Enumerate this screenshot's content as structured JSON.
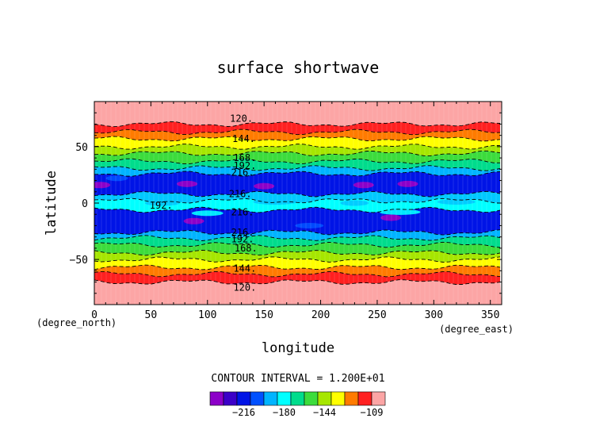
{
  "chart_data": {
    "type": "heatmap",
    "title": "surface shortwave",
    "xlabel": "longitude",
    "ylabel": "latitude",
    "x_unit_label": "(degree_east)",
    "y_unit_label": "(degree_north)",
    "xlim": [
      0,
      360
    ],
    "ylim": [
      -90,
      90
    ],
    "x_ticks": [
      0,
      50,
      100,
      150,
      200,
      250,
      300,
      350
    ],
    "y_ticks": [
      -50,
      0,
      50
    ],
    "x_tick_labels": [
      "0",
      "50",
      "100",
      "150",
      "200",
      "250",
      "300",
      "350"
    ],
    "y_tick_labels": [
      "−50",
      "0",
      "50"
    ],
    "grid": false,
    "contour_interval_text": "CONTOUR INTERVAL = 1.200E+01",
    "contour_labels": [
      {
        "text": "120.",
        "lon": 130,
        "lat": 75
      },
      {
        "text": "144.",
        "lon": 132,
        "lat": 57
      },
      {
        "text": "168.",
        "lon": 133,
        "lat": 40
      },
      {
        "text": "192.",
        "lon": 133,
        "lat": 33
      },
      {
        "text": "216.",
        "lon": 131,
        "lat": 27
      },
      {
        "text": "216.",
        "lon": 129,
        "lat": 8
      },
      {
        "text": "192.",
        "lon": 59,
        "lat": -2
      },
      {
        "text": "216.",
        "lon": 131,
        "lat": -8
      },
      {
        "text": "216.",
        "lon": 131,
        "lat": -26
      },
      {
        "text": "192.",
        "lon": 131,
        "lat": -32
      },
      {
        "text": "168.",
        "lon": 134,
        "lat": -40
      },
      {
        "text": "144.",
        "lon": 133,
        "lat": -58
      },
      {
        "text": "120.",
        "lon": 133,
        "lat": -75
      }
    ],
    "bands": [
      {
        "lat_from": 90,
        "lat_to": 70,
        "color": "#fca5a5"
      },
      {
        "lat_from": 70,
        "lat_to": 63,
        "color": "#ff2020"
      },
      {
        "lat_from": 63,
        "lat_to": 57,
        "color": "#ff7b00"
      },
      {
        "lat_from": 57,
        "lat_to": 50,
        "color": "#ffff00"
      },
      {
        "lat_from": 50,
        "lat_to": 44,
        "color": "#a6e600"
      },
      {
        "lat_from": 44,
        "lat_to": 37,
        "color": "#3cdc3c"
      },
      {
        "lat_from": 37,
        "lat_to": 31,
        "color": "#00dc8c"
      },
      {
        "lat_from": 31,
        "lat_to": 26,
        "color": "#00b4ff"
      },
      {
        "lat_from": 26,
        "lat_to": 8,
        "color": "#0014e6"
      },
      {
        "lat_from": 8,
        "lat_to": 2,
        "color": "#00c8ff"
      },
      {
        "lat_from": 2,
        "lat_to": -6,
        "color": "#00ffff"
      },
      {
        "lat_from": -6,
        "lat_to": -26,
        "color": "#0014e6"
      },
      {
        "lat_from": -26,
        "lat_to": -31,
        "color": "#00b4ff"
      },
      {
        "lat_from": -31,
        "lat_to": -37,
        "color": "#00dc8c"
      },
      {
        "lat_from": -37,
        "lat_to": -44,
        "color": "#3cdc3c"
      },
      {
        "lat_from": -44,
        "lat_to": -50,
        "color": "#a6e600"
      },
      {
        "lat_from": -50,
        "lat_to": -57,
        "color": "#ffff00"
      },
      {
        "lat_from": -57,
        "lat_to": -63,
        "color": "#ff7b00"
      },
      {
        "lat_from": -63,
        "lat_to": -70,
        "color": "#ff2020"
      },
      {
        "lat_from": -70,
        "lat_to": -90,
        "color": "#fca5a5"
      }
    ],
    "patches": [
      {
        "lon": 5,
        "lat": 16,
        "color": "#8c00c8"
      },
      {
        "lon": 82,
        "lat": 17,
        "color": "#8c00c8"
      },
      {
        "lon": 88,
        "lat": -16,
        "color": "#8c00c8"
      },
      {
        "lon": 150,
        "lat": 15,
        "color": "#8c00c8"
      },
      {
        "lon": 238,
        "lat": 16,
        "color": "#8c00c8"
      },
      {
        "lon": 277,
        "lat": 17,
        "color": "#8c00c8"
      },
      {
        "lon": 262,
        "lat": -13,
        "color": "#8c00c8"
      }
    ],
    "colorbar": {
      "colors": [
        "#8c00c8",
        "#3c00c8",
        "#0014e6",
        "#0050ff",
        "#00b4ff",
        "#00ffff",
        "#00dc8c",
        "#3cdc3c",
        "#a6e600",
        "#ffff00",
        "#ff7b00",
        "#ff2020",
        "#fca5a5"
      ],
      "tick_labels": [
        "−216",
        "−180",
        "−144",
        "−109"
      ]
    }
  }
}
